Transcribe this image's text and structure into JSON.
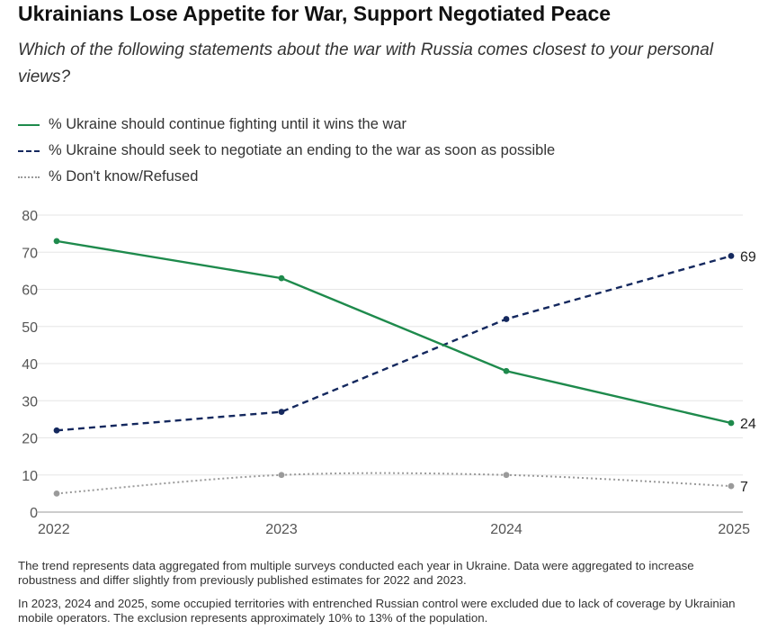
{
  "title": "Ukrainians Lose Appetite for War, Support Negotiated Peace",
  "subtitle": "Which of the following statements about the war with Russia comes closest to your personal views?",
  "legend": [
    {
      "label": "% Ukraine should continue fighting until it wins the war",
      "color": "#1e8a4c",
      "style": "solid"
    },
    {
      "label": "% Ukraine should seek to negotiate an ending to the war as soon as possible",
      "color": "#14285e",
      "style": "dashed"
    },
    {
      "label": "% Don't know/Refused",
      "color": "#9a9a9a",
      "style": "dotted"
    }
  ],
  "chart_data": {
    "type": "line",
    "title": "Ukrainians Lose Appetite for War, Support Negotiated Peace",
    "x": [
      "2022",
      "2023",
      "2024",
      "2025"
    ],
    "yticks": [
      0,
      10,
      20,
      30,
      40,
      50,
      60,
      70,
      80
    ],
    "ylim": [
      0,
      80
    ],
    "grid": true,
    "series": [
      {
        "name": "% Ukraine should continue fighting until it wins the war",
        "values": [
          73,
          63,
          38,
          24
        ],
        "color": "#1e8a4c",
        "style": "solid",
        "end_label": "24"
      },
      {
        "name": "% Ukraine should seek to negotiate an ending to the war as soon as possible",
        "values": [
          22,
          27,
          52,
          69
        ],
        "color": "#14285e",
        "style": "dashed",
        "end_label": "69"
      },
      {
        "name": "% Don't know/Refused",
        "values": [
          5,
          10,
          10,
          7
        ],
        "color": "#9a9a9a",
        "style": "dotted",
        "end_label": "7"
      }
    ]
  },
  "notes": [
    "The trend represents data aggregated from multiple surveys conducted each year in Ukraine. Data were aggregated to increase robustness and differ slightly from previously published estimates for 2022 and 2023.",
    "In 2023, 2024 and 2025, some occupied territories with entrenched Russian control were excluded due to lack of coverage by Ukrainian mobile operators. The exclusion represents approximately 10% to 13% of the population."
  ]
}
